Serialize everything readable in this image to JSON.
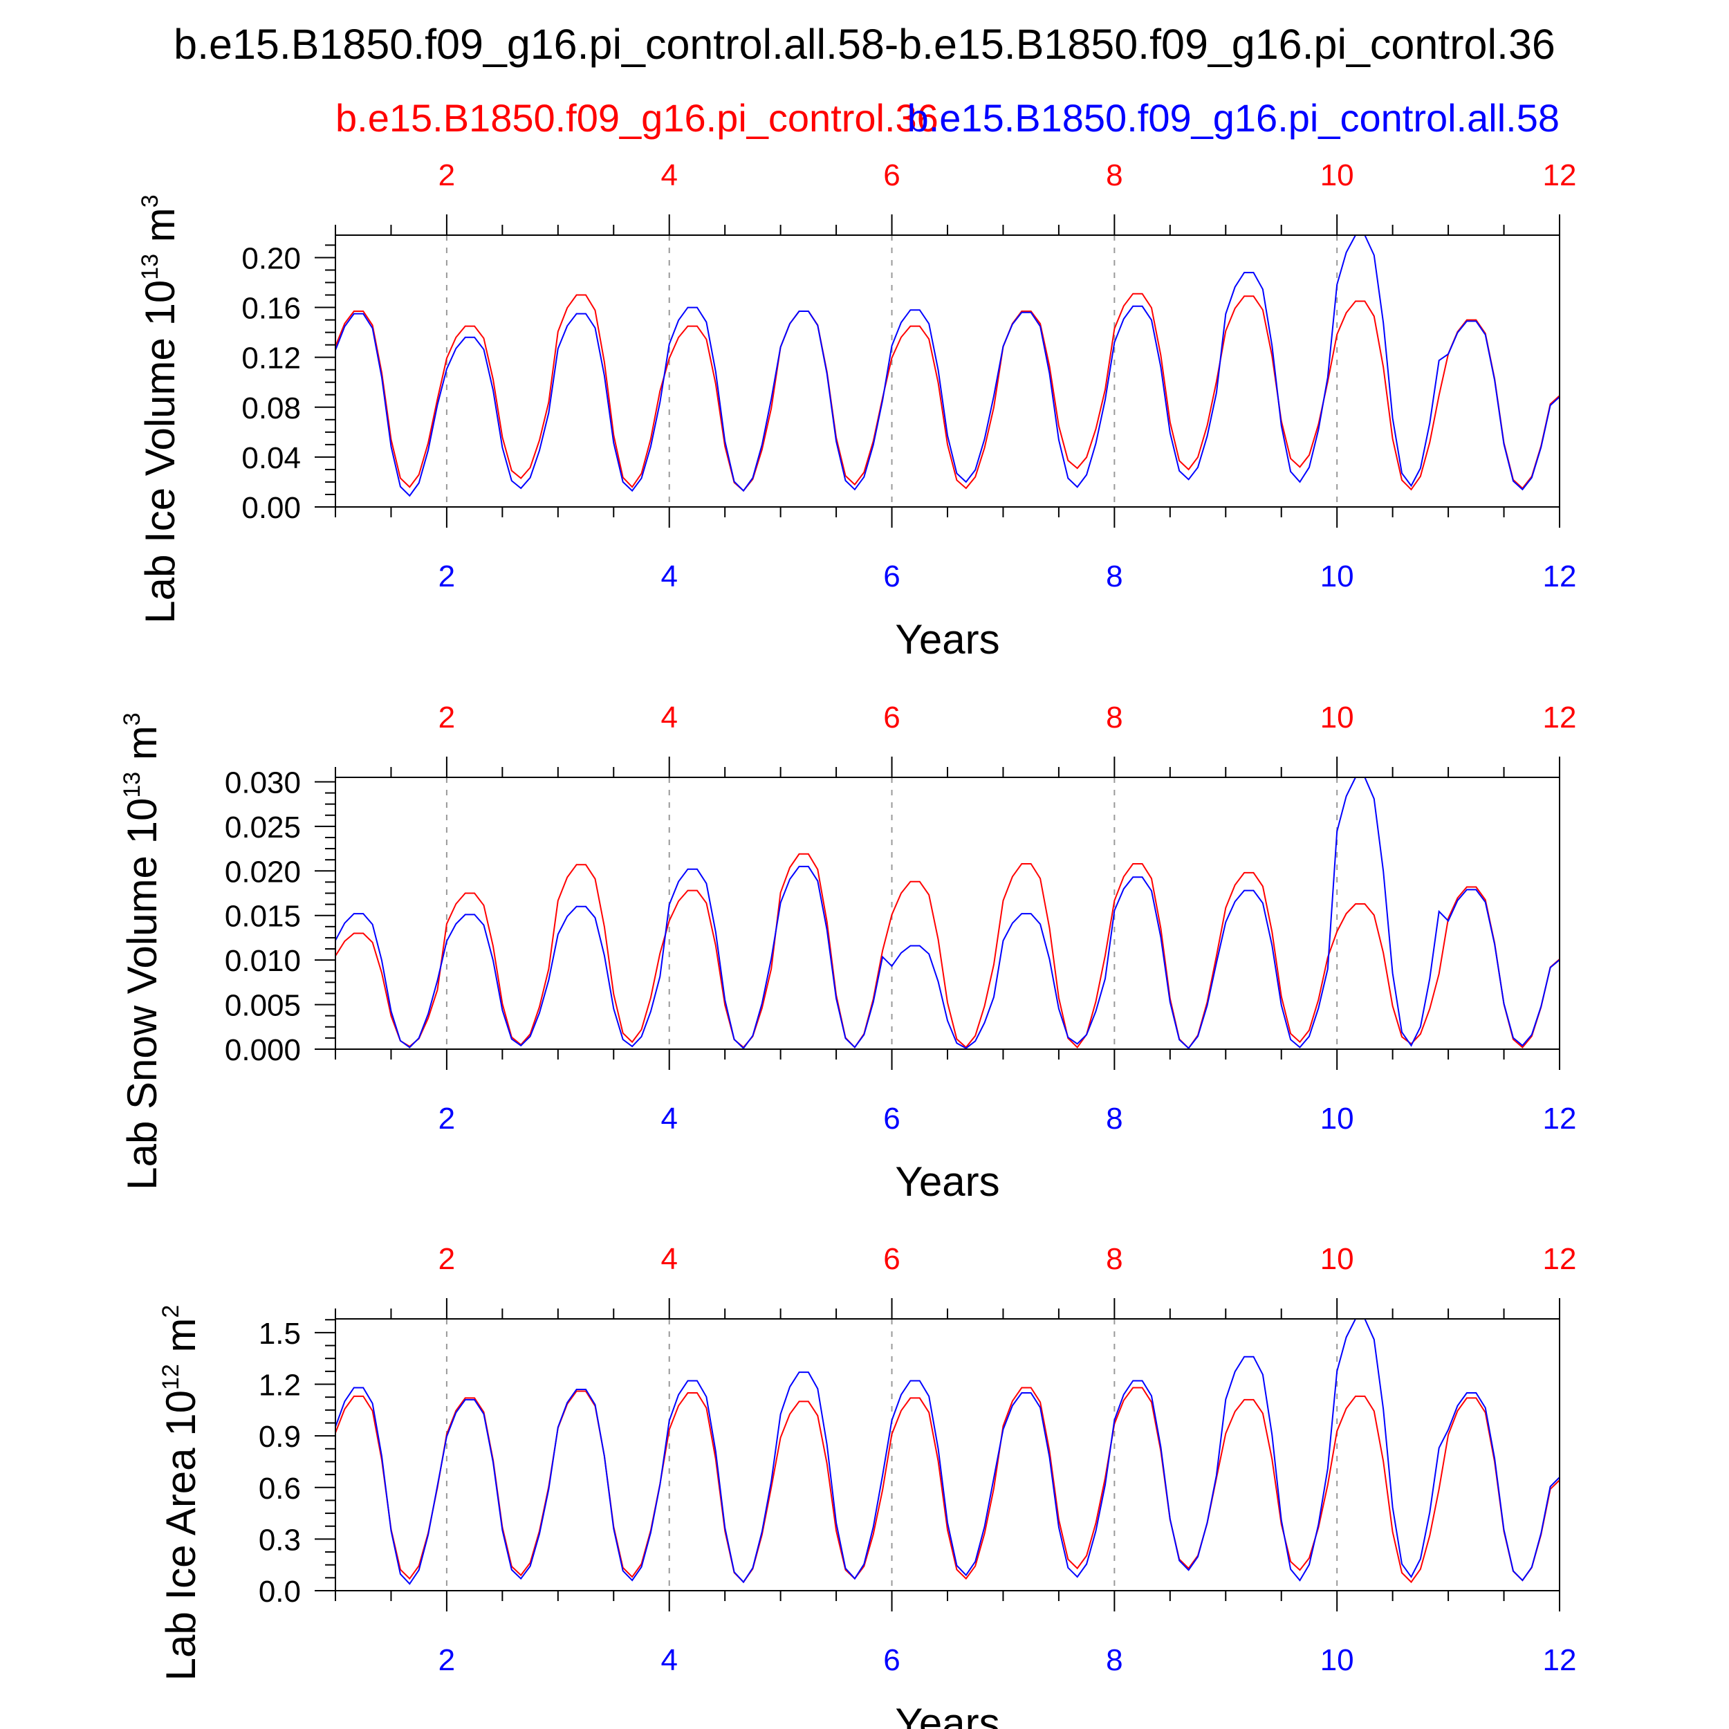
{
  "title": "b.e15.B1850.f09_g16.pi_control.all.58-b.e15.B1850.f09_g16.pi_control.36",
  "subtitle_left": "b.e15.B1850.f09_g16.pi_control.36",
  "subtitle_right": "b.e15.B1850.f09_g16.pi_control.all.58",
  "colors": {
    "series_a": "#ff0000",
    "series_b": "#0000ff",
    "frame": "#000000",
    "grid": "#999999"
  },
  "chart_data": [
    {
      "type": "line",
      "ylabel": {
        "main": "Lab Ice Volume 10",
        "exp": "13",
        "unit": " m",
        "unit_exp": "3"
      },
      "xlabel": "Years",
      "xlim": [
        1,
        12
      ],
      "ylim": [
        0,
        0.218
      ],
      "x_ticks": [
        "2",
        "4",
        "6",
        "8",
        "10",
        "12"
      ],
      "y_ticks": [
        "0.00",
        "0.04",
        "0.08",
        "0.12",
        "0.16",
        "0.20"
      ],
      "grid": "dashed vertical lines at even years",
      "series": [
        {
          "name": "b.e15.B1850.f09_g16.pi_control.36",
          "color": "#ff0000",
          "peaks": [
            0.157,
            0.145,
            0.17,
            0.145,
            0.157,
            0.145,
            0.157,
            0.171,
            0.169,
            0.165,
            0.15
          ],
          "troughs": [
            0.016,
            0.023,
            0.016,
            0.013,
            0.018,
            0.015,
            0.031,
            0.03,
            0.032,
            0.014,
            0.015
          ]
        },
        {
          "name": "b.e15.B1850.f09_g16.pi_control.all.58",
          "color": "#0000ff",
          "peaks": [
            0.155,
            0.136,
            0.155,
            0.16,
            0.157,
            0.158,
            0.156,
            0.161,
            0.188,
            0.218,
            0.149
          ],
          "troughs": [
            0.009,
            0.015,
            0.013,
            0.013,
            0.014,
            0.02,
            0.016,
            0.022,
            0.02,
            0.017,
            0.014
          ]
        }
      ]
    },
    {
      "type": "line",
      "ylabel": {
        "main": "Lab Snow Volume 10",
        "exp": "13",
        "unit": " m",
        "unit_exp": "3"
      },
      "xlabel": "Years",
      "xlim": [
        1,
        12
      ],
      "ylim": [
        0,
        0.0305
      ],
      "x_ticks": [
        "2",
        "4",
        "6",
        "8",
        "10",
        "12"
      ],
      "y_ticks": [
        "0.000",
        "0.005",
        "0.010",
        "0.015",
        "0.020",
        "0.025",
        "0.030"
      ],
      "grid": "dashed vertical lines at even years",
      "series": [
        {
          "name": "b.e15.B1850.f09_g16.pi_control.36",
          "color": "#ff0000",
          "peaks": [
            0.013,
            0.0175,
            0.0207,
            0.0178,
            0.0219,
            0.0188,
            0.0208,
            0.0208,
            0.0198,
            0.0163,
            0.0182
          ],
          "troughs": [
            0.0003,
            0.0005,
            0.0008,
            0.0002,
            0.0002,
            0.0002,
            0.0002,
            0.0001,
            0.0008,
            0.0006,
            0.0002
          ]
        },
        {
          "name": "b.e15.B1850.f09_g16.pi_control.all.58",
          "color": "#0000ff",
          "peaks": [
            0.0152,
            0.0151,
            0.016,
            0.0202,
            0.0205,
            0.0116,
            0.0152,
            0.0193,
            0.0178,
            0.0305,
            0.0179
          ],
          "troughs": [
            0.0002,
            0.0004,
            0.0003,
            0.0001,
            0.0002,
            0.0001,
            0.0006,
            0.0001,
            0.0002,
            0.0004,
            0.0004
          ]
        }
      ]
    },
    {
      "type": "line",
      "ylabel": {
        "main": "Lab Ice Area 10",
        "exp": "12",
        "unit": " m",
        "unit_exp": "2"
      },
      "xlabel": "Years",
      "xlim": [
        1,
        12
      ],
      "ylim": [
        0,
        1.58
      ],
      "x_ticks": [
        "2",
        "4",
        "6",
        "8",
        "10",
        "12"
      ],
      "y_ticks": [
        "0.0",
        "0.3",
        "0.6",
        "0.9",
        "1.2",
        "1.5"
      ],
      "grid": "dashed vertical lines at even years",
      "series": [
        {
          "name": "b.e15.B1850.f09_g16.pi_control.36",
          "color": "#ff0000",
          "peaks": [
            1.13,
            1.12,
            1.16,
            1.15,
            1.1,
            1.12,
            1.18,
            1.18,
            1.11,
            1.13,
            1.12
          ],
          "troughs": [
            0.07,
            0.09,
            0.08,
            0.05,
            0.07,
            0.07,
            0.13,
            0.13,
            0.12,
            0.05,
            0.06
          ]
        },
        {
          "name": "b.e15.B1850.f09_g16.pi_control.all.58",
          "color": "#0000ff",
          "peaks": [
            1.18,
            1.11,
            1.17,
            1.22,
            1.27,
            1.22,
            1.15,
            1.22,
            1.36,
            1.58,
            1.15
          ],
          "troughs": [
            0.04,
            0.07,
            0.06,
            0.05,
            0.07,
            0.09,
            0.08,
            0.12,
            0.06,
            0.08,
            0.06
          ]
        }
      ]
    }
  ]
}
